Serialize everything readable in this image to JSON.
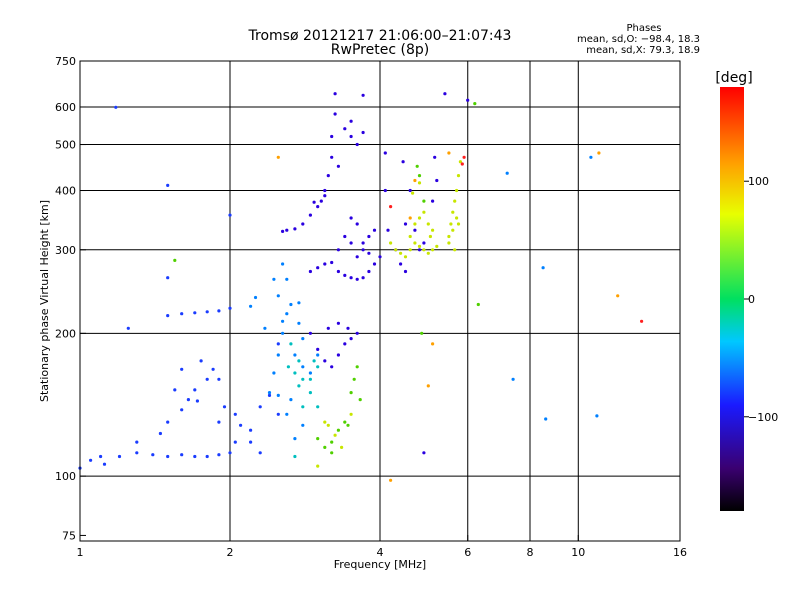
{
  "header": {
    "title": "Tromsø 20121217 21:06:00–21:07:43",
    "subtitle": "RwPretec (8p)",
    "phases_title": "Phases",
    "phases_o": "mean, sd,O: −98.4, 18.3",
    "phases_x": "mean, sd,X:  79.3, 18.9"
  },
  "colorbar": {
    "label": "[deg]",
    "range": [
      -180,
      180
    ],
    "tick_values": [
      100,
      0,
      -100
    ],
    "tick_labels": [
      "100",
      "0",
      "−100"
    ]
  },
  "chart_data": {
    "type": "scatter",
    "title": "Tromsø 20121217 21:06:00–21:07:43",
    "subtitle": "RwPretec (8p)",
    "xlabel": "Frequency [MHz]",
    "ylabel": "Stationary phase Virtual Height [km]",
    "x_scale": "log",
    "y_scale": "log",
    "xlim": [
      1,
      16
    ],
    "ylim": [
      73,
      750
    ],
    "x_ticks": [
      1,
      2,
      4,
      6,
      8,
      10,
      16
    ],
    "x_tick_labels": [
      "1",
      "2",
      "4",
      "6",
      "8",
      "10",
      "16"
    ],
    "y_ticks": [
      75,
      100,
      200,
      300,
      400,
      500,
      600,
      750
    ],
    "y_tick_labels": [
      "75",
      "100",
      "200",
      "300",
      "400",
      "500",
      "600",
      "750"
    ],
    "x_gridlines": [
      2,
      4,
      6,
      8,
      10
    ],
    "y_gridlines": [
      100,
      200,
      300,
      400,
      500,
      600
    ],
    "grid": true,
    "color_scale": "phase [deg]",
    "series": [
      {
        "color": "#1a3cff",
        "points": [
          [
            1.0,
            104
          ],
          [
            1.05,
            108
          ],
          [
            1.1,
            110
          ],
          [
            1.12,
            106
          ],
          [
            1.2,
            110
          ],
          [
            1.3,
            112
          ],
          [
            1.4,
            111
          ],
          [
            1.5,
            110
          ],
          [
            1.6,
            111
          ],
          [
            1.7,
            110
          ],
          [
            1.8,
            110
          ],
          [
            1.9,
            111
          ],
          [
            2.0,
            112
          ],
          [
            1.3,
            118
          ],
          [
            1.45,
            123
          ],
          [
            1.5,
            130
          ],
          [
            1.6,
            138
          ],
          [
            1.65,
            145
          ],
          [
            1.7,
            152
          ],
          [
            1.8,
            160
          ],
          [
            1.85,
            168
          ],
          [
            1.6,
            168
          ],
          [
            1.75,
            175
          ],
          [
            1.9,
            160
          ],
          [
            1.6,
            220
          ],
          [
            1.7,
            221
          ],
          [
            1.8,
            222
          ],
          [
            1.9,
            223
          ],
          [
            2.0,
            226
          ],
          [
            1.5,
            218
          ],
          [
            2.05,
            135
          ],
          [
            2.1,
            128
          ],
          [
            2.2,
            125
          ],
          [
            2.3,
            140
          ],
          [
            2.4,
            148
          ],
          [
            2.5,
            135
          ],
          [
            2.2,
            118
          ],
          [
            2.3,
            112
          ],
          [
            2.05,
            118
          ],
          [
            1.95,
            140
          ],
          [
            1.18,
            599
          ],
          [
            1.5,
            410
          ],
          [
            1.25,
            205
          ],
          [
            1.5,
            262
          ],
          [
            2.0,
            355
          ],
          [
            2.5,
            190
          ],
          [
            1.72,
            144
          ],
          [
            1.9,
            130
          ],
          [
            1.55,
            152
          ]
        ]
      },
      {
        "color": "#2a00e0",
        "points": [
          [
            2.55,
            328
          ],
          [
            2.6,
            330
          ],
          [
            2.7,
            332
          ],
          [
            2.8,
            340
          ],
          [
            2.9,
            355
          ],
          [
            3.0,
            370
          ],
          [
            3.05,
            380
          ],
          [
            3.1,
            400
          ],
          [
            3.15,
            430
          ],
          [
            3.2,
            470
          ],
          [
            3.2,
            520
          ],
          [
            3.25,
            580
          ],
          [
            3.25,
            640
          ],
          [
            3.3,
            450
          ],
          [
            3.1,
            390
          ],
          [
            2.95,
            378
          ],
          [
            3.5,
            520
          ],
          [
            3.6,
            500
          ],
          [
            3.7,
            530
          ],
          [
            3.4,
            540
          ],
          [
            3.5,
            560
          ],
          [
            2.9,
            270
          ],
          [
            3.0,
            275
          ],
          [
            3.1,
            280
          ],
          [
            3.2,
            282
          ],
          [
            3.3,
            270
          ],
          [
            3.4,
            265
          ],
          [
            3.5,
            262
          ],
          [
            3.6,
            260
          ],
          [
            3.7,
            262
          ],
          [
            3.8,
            270
          ],
          [
            3.9,
            280
          ],
          [
            4.0,
            290
          ],
          [
            3.3,
            300
          ],
          [
            3.4,
            320
          ],
          [
            3.5,
            350
          ],
          [
            3.6,
            340
          ],
          [
            3.7,
            310
          ],
          [
            3.8,
            320
          ],
          [
            3.9,
            330
          ],
          [
            3.5,
            310
          ],
          [
            3.6,
            290
          ],
          [
            3.7,
            300
          ],
          [
            3.8,
            295
          ],
          [
            2.9,
            200
          ],
          [
            3.0,
            185
          ],
          [
            3.1,
            175
          ],
          [
            3.2,
            170
          ],
          [
            3.3,
            180
          ],
          [
            3.4,
            190
          ],
          [
            3.5,
            195
          ],
          [
            3.6,
            200
          ],
          [
            3.3,
            210
          ],
          [
            3.15,
            205
          ],
          [
            3.45,
            205
          ],
          [
            4.1,
            480
          ],
          [
            4.1,
            400
          ],
          [
            4.15,
            330
          ],
          [
            4.3,
            300
          ],
          [
            4.4,
            280
          ],
          [
            4.5,
            270
          ],
          [
            4.5,
            340
          ],
          [
            4.6,
            400
          ],
          [
            4.7,
            330
          ],
          [
            4.8,
            300
          ],
          [
            5.1,
            380
          ],
          [
            5.15,
            470
          ],
          [
            5.2,
            420
          ],
          [
            5.4,
            640
          ],
          [
            6.0,
            620
          ],
          [
            4.9,
            112
          ],
          [
            3.7,
            635
          ],
          [
            4.45,
            460
          ],
          [
            4.9,
            310
          ]
        ]
      },
      {
        "color": "#0080ff",
        "points": [
          [
            2.4,
            150
          ],
          [
            2.45,
            165
          ],
          [
            2.5,
            180
          ],
          [
            2.55,
            200
          ],
          [
            2.6,
            220
          ],
          [
            2.5,
            240
          ],
          [
            2.45,
            260
          ],
          [
            2.55,
            280
          ],
          [
            2.6,
            260
          ],
          [
            2.65,
            230
          ],
          [
            2.75,
            210
          ],
          [
            2.8,
            195
          ],
          [
            2.7,
            180
          ],
          [
            2.8,
            170
          ],
          [
            2.25,
            238
          ],
          [
            2.2,
            228
          ],
          [
            2.35,
            205
          ],
          [
            2.5,
            148
          ],
          [
            2.6,
            135
          ],
          [
            2.7,
            120
          ],
          [
            2.8,
            128
          ],
          [
            2.65,
            145
          ],
          [
            2.55,
            212
          ],
          [
            2.75,
            232
          ],
          [
            7.2,
            435
          ],
          [
            7.4,
            160
          ],
          [
            8.5,
            275
          ],
          [
            8.6,
            132
          ],
          [
            10.6,
            470
          ],
          [
            10.9,
            134
          ],
          [
            3.0,
            180
          ],
          [
            2.9,
            165
          ]
        ]
      },
      {
        "color": "#00bfbf",
        "points": [
          [
            2.62,
            170
          ],
          [
            2.7,
            165
          ],
          [
            2.75,
            175
          ],
          [
            2.8,
            160
          ],
          [
            2.9,
            150
          ],
          [
            3.0,
            140
          ],
          [
            2.9,
            160
          ],
          [
            2.8,
            140
          ],
          [
            2.75,
            155
          ],
          [
            2.65,
            190
          ],
          [
            2.95,
            175
          ],
          [
            3.0,
            170
          ],
          [
            2.7,
            110
          ]
        ]
      },
      {
        "color": "#50d000",
        "points": [
          [
            3.0,
            120
          ],
          [
            3.1,
            115
          ],
          [
            3.2,
            118
          ],
          [
            3.3,
            125
          ],
          [
            3.4,
            130
          ],
          [
            3.45,
            128
          ],
          [
            3.5,
            150
          ],
          [
            3.55,
            160
          ],
          [
            3.6,
            170
          ],
          [
            3.65,
            145
          ],
          [
            4.8,
            430
          ],
          [
            4.75,
            450
          ],
          [
            4.9,
            380
          ],
          [
            6.2,
            610
          ],
          [
            6.3,
            230
          ],
          [
            1.55,
            285
          ],
          [
            4.85,
            200
          ],
          [
            3.2,
            112
          ]
        ]
      },
      {
        "color": "#c8e600",
        "points": [
          [
            4.2,
            310
          ],
          [
            4.3,
            300
          ],
          [
            4.4,
            295
          ],
          [
            4.5,
            290
          ],
          [
            4.6,
            300
          ],
          [
            4.7,
            310
          ],
          [
            4.8,
            305
          ],
          [
            4.9,
            300
          ],
          [
            5.0,
            295
          ],
          [
            5.1,
            300
          ],
          [
            5.2,
            305
          ],
          [
            4.6,
            320
          ],
          [
            4.7,
            340
          ],
          [
            4.8,
            350
          ],
          [
            4.9,
            360
          ],
          [
            5.0,
            340
          ],
          [
            5.05,
            320
          ],
          [
            5.1,
            330
          ],
          [
            5.5,
            320
          ],
          [
            5.55,
            340
          ],
          [
            5.6,
            360
          ],
          [
            5.65,
            380
          ],
          [
            5.7,
            400
          ],
          [
            5.75,
            430
          ],
          [
            5.8,
            460
          ],
          [
            5.7,
            350
          ],
          [
            5.6,
            330
          ],
          [
            5.5,
            310
          ],
          [
            5.65,
            300
          ],
          [
            5.75,
            340
          ],
          [
            3.1,
            130
          ],
          [
            3.25,
            122
          ],
          [
            3.35,
            115
          ],
          [
            3.15,
            128
          ],
          [
            3.0,
            105
          ],
          [
            3.5,
            135
          ],
          [
            4.8,
            415
          ],
          [
            4.65,
            395
          ]
        ]
      },
      {
        "color": "#ffa000",
        "points": [
          [
            4.6,
            350
          ],
          [
            4.7,
            420
          ],
          [
            5.5,
            480
          ],
          [
            11.0,
            480
          ],
          [
            12.0,
            240
          ],
          [
            2.5,
            470
          ],
          [
            4.2,
            98
          ],
          [
            5.1,
            190
          ],
          [
            5.0,
            155
          ]
        ]
      },
      {
        "color": "#ff2020",
        "points": [
          [
            13.4,
            212
          ],
          [
            4.2,
            370
          ],
          [
            5.9,
            470
          ],
          [
            5.85,
            455
          ]
        ]
      }
    ]
  }
}
